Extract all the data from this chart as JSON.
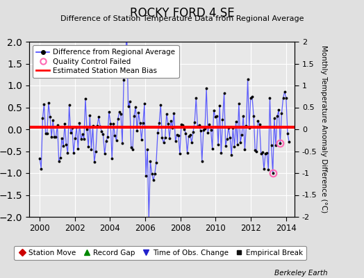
{
  "title": "ROCKY FORD 4 SE",
  "subtitle": "Difference of Station Temperature Data from Regional Average",
  "ylabel": "Monthly Temperature Anomaly Difference (°C)",
  "xlabel_ticks": [
    2000,
    2002,
    2004,
    2006,
    2008,
    2010,
    2012,
    2014
  ],
  "ylim": [
    -2,
    2
  ],
  "yticks": [
    -2,
    -1.5,
    -1,
    -0.5,
    0,
    0.5,
    1,
    1.5,
    2
  ],
  "ytick_labels": [
    "-2",
    "-1.5",
    "-1",
    "-0.5",
    "0",
    "0.5",
    "1",
    "1.5",
    "2"
  ],
  "mean_bias": 0.05,
  "bias_color": "#ff0000",
  "line_color": "#4444ff",
  "line_color_light": "#aaaaff",
  "marker_color": "#000000",
  "bg_color": "#e0e0e0",
  "plot_bg": "#e8e8e8",
  "qc_color": "#ff69b4",
  "watermark": "Berkeley Earth",
  "seed": 42,
  "n_points": 170,
  "t_start": 2000.0,
  "t_end": 2014.17
}
